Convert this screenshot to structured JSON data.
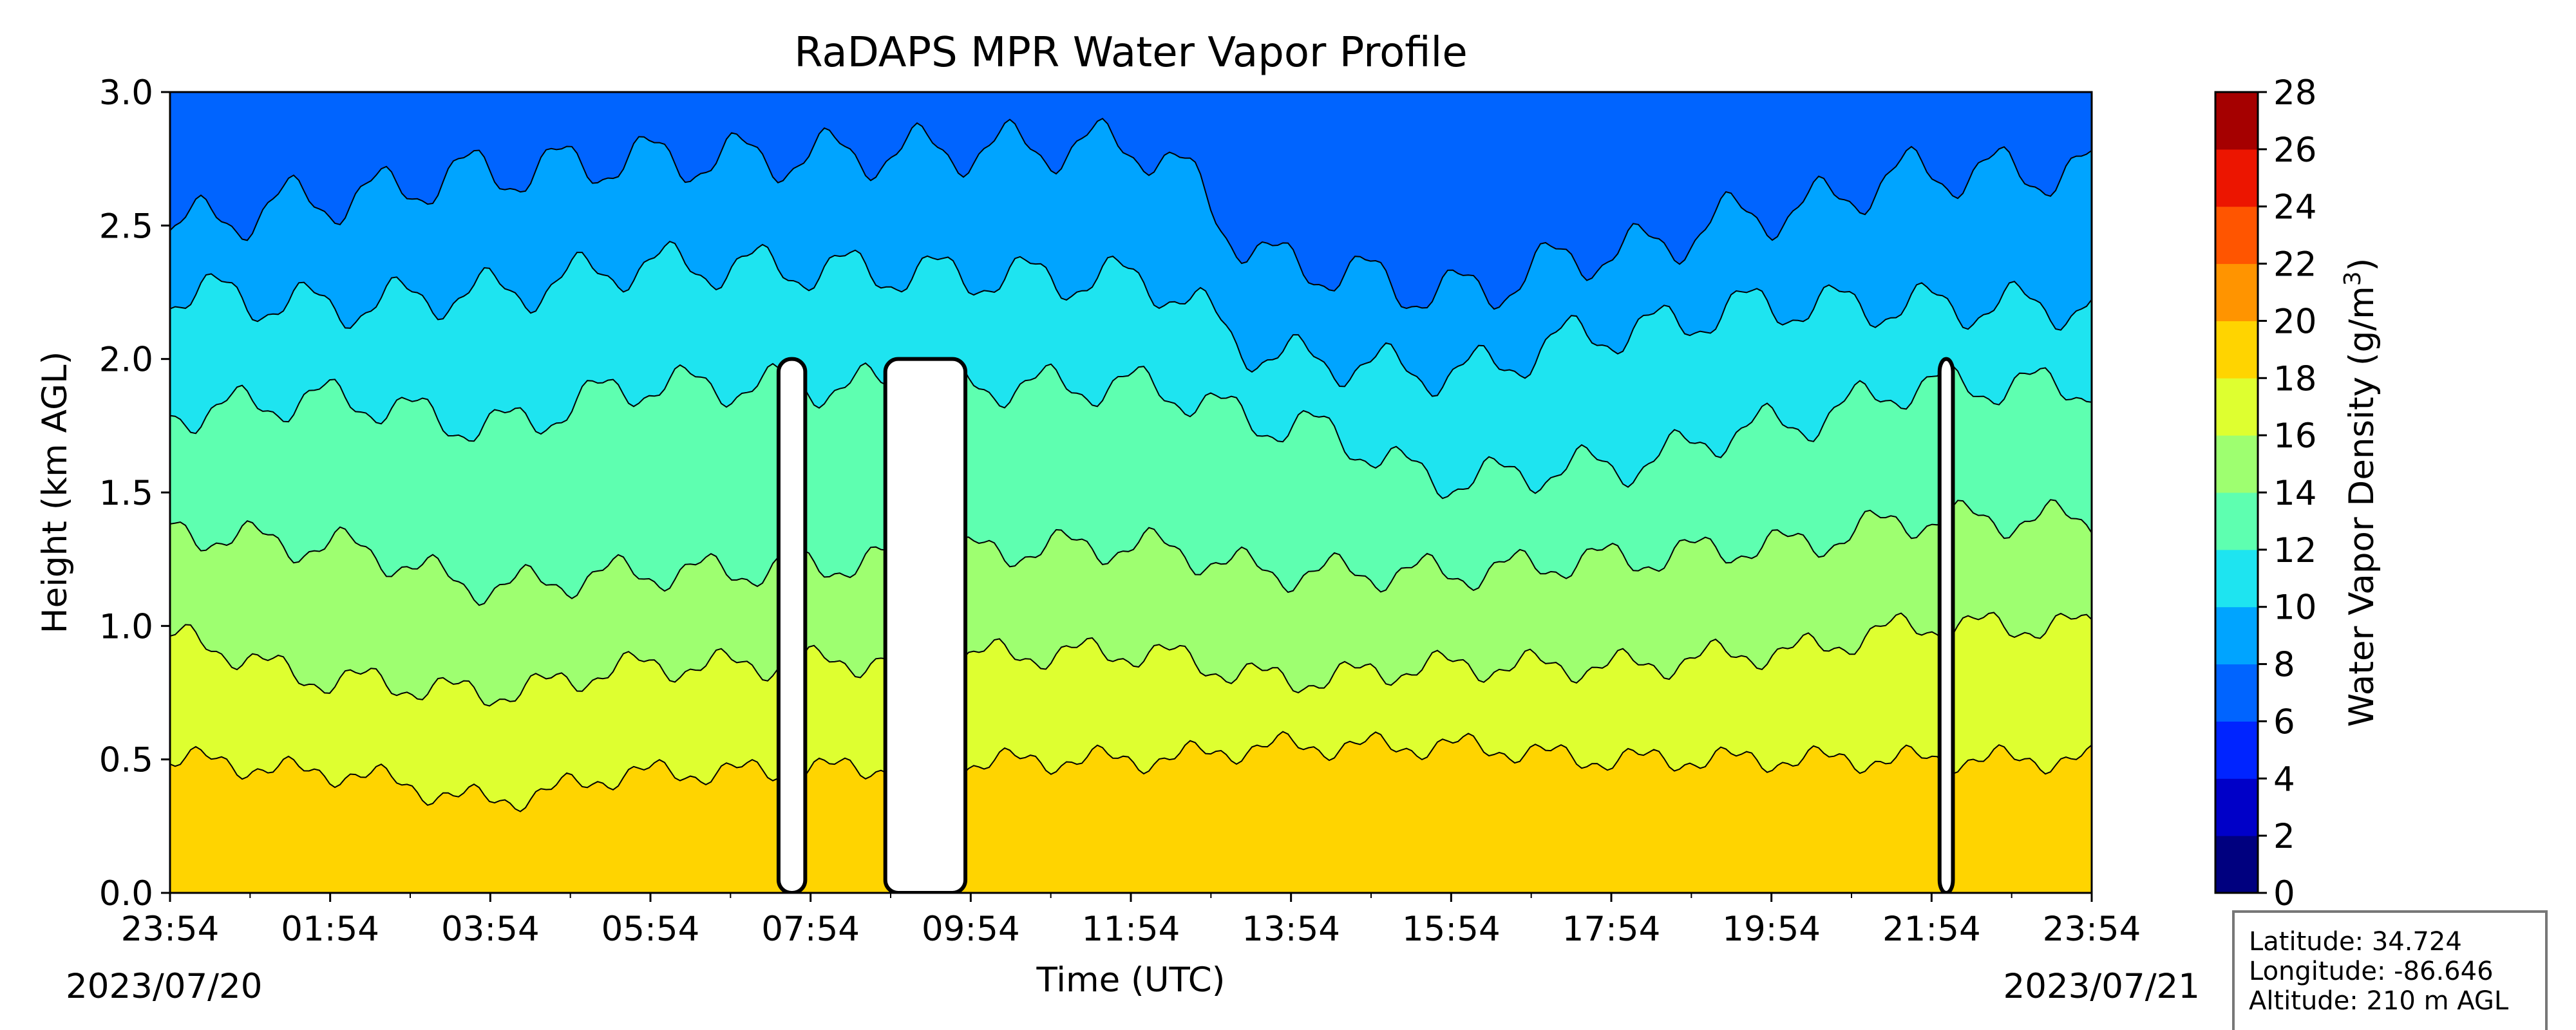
{
  "chart_data": {
    "type": "heatmap",
    "title": "RaDAPS MPR Water Vapor Profile",
    "xlabel": "Time (UTC)",
    "ylabel": "Height (km AGL)",
    "x_ticks": [
      "23:54",
      "01:54",
      "03:54",
      "05:54",
      "07:54",
      "09:54",
      "11:54",
      "13:54",
      "15:54",
      "17:54",
      "19:54",
      "21:54",
      "23:54"
    ],
    "x_range": [
      "2023-07-20 23:54",
      "2023-07-21 23:54"
    ],
    "start_date": "2023/07/20",
    "end_date": "2023/07/21",
    "y_ticks": [
      "0.0",
      "0.5",
      "1.0",
      "1.5",
      "2.0",
      "2.5",
      "3.0"
    ],
    "ylim": [
      0,
      3
    ],
    "colorbar": {
      "label": "Water Vapor Density (g/m",
      "label_sup": "3",
      "label_close": ")",
      "ticks": [
        "0",
        "2",
        "4",
        "6",
        "8",
        "10",
        "12",
        "14",
        "16",
        "18",
        "20",
        "22",
        "24",
        "26",
        "28"
      ],
      "range": [
        0,
        28
      ],
      "colors": [
        "#00007f",
        "#0000c8",
        "#0024ff",
        "#0064ff",
        "#00a4ff",
        "#1ee4f0",
        "#5effb0",
        "#9eff70",
        "#deff30",
        "#ffd400",
        "#ff9400",
        "#ff5500",
        "#ec1500",
        "#a50000"
      ]
    },
    "grid": false,
    "clear_sky_gaps_utc": [
      [
        "07:30",
        "07:50"
      ],
      [
        "08:50",
        "09:50"
      ],
      [
        "22:00",
        "22:10"
      ]
    ],
    "levels_by_time": [
      {
        "time": "23:54",
        "levels_km": [
          0.5,
          0.95,
          1.35,
          1.8,
          2.25,
          2.5
        ]
      },
      {
        "time": "01:54",
        "levels_km": [
          0.45,
          0.8,
          1.3,
          1.85,
          2.2,
          2.6
        ]
      },
      {
        "time": "03:54",
        "levels_km": [
          0.35,
          0.75,
          1.15,
          1.75,
          2.25,
          2.7
        ]
      },
      {
        "time": "05:54",
        "levels_km": [
          0.45,
          0.85,
          1.2,
          1.9,
          2.35,
          2.75
        ]
      },
      {
        "time": "11:54",
        "levels_km": [
          0.5,
          0.9,
          1.3,
          1.9,
          2.3,
          2.8
        ]
      },
      {
        "time": "13:54",
        "levels_km": [
          0.55,
          0.8,
          1.2,
          1.75,
          2.0,
          2.35
        ]
      },
      {
        "time": "15:54",
        "levels_km": [
          0.55,
          0.85,
          1.2,
          1.55,
          1.95,
          2.25
        ]
      },
      {
        "time": "17:54",
        "levels_km": [
          0.5,
          0.85,
          1.25,
          1.6,
          2.1,
          2.4
        ]
      },
      {
        "time": "19:54",
        "levels_km": [
          0.5,
          0.9,
          1.3,
          1.75,
          2.2,
          2.55
        ]
      },
      {
        "time": "21:54",
        "levels_km": [
          0.5,
          1.0,
          1.4,
          1.9,
          2.2,
          2.7
        ]
      }
    ]
  },
  "info_box": {
    "latitude": "Latitude: 34.724",
    "longitude": "Longitude: -86.646",
    "altitude": "Altitude: 210 m AGL"
  }
}
